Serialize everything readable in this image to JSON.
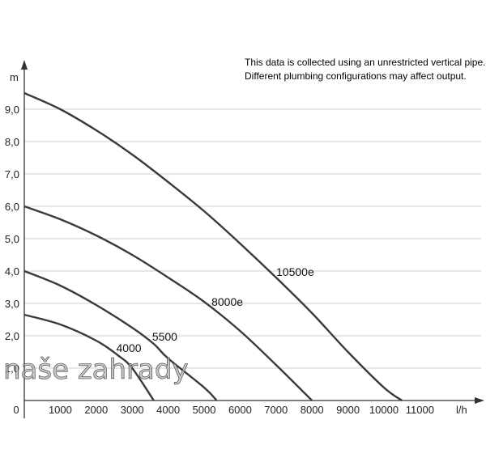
{
  "chart_data": {
    "type": "line",
    "xlabel": "l/h",
    "ylabel": "m",
    "xlim": [
      0,
      12000
    ],
    "ylim": [
      0,
      10
    ],
    "x_ticks": [
      "0",
      "1000",
      "2000",
      "3000",
      "4000",
      "5000",
      "6000",
      "7000",
      "8000",
      "9000",
      "10000",
      "11000"
    ],
    "y_ticks": [
      "1,0",
      "2,0",
      "3,0",
      "4,0",
      "5,0",
      "6,0",
      "7,0",
      "8,0",
      "9,0"
    ],
    "grid": "horizontal",
    "annotations": [
      "This data is collected using an unrestricted vertical pipe.",
      "Different plumbing configurations may affect output."
    ],
    "series": [
      {
        "name": "4000",
        "max_head": 2.65,
        "max_flow": 3600,
        "label_at": 2600,
        "points": [
          [
            0,
            2.65
          ],
          [
            1000,
            2.35
          ],
          [
            2000,
            1.85
          ],
          [
            2600,
            1.4
          ],
          [
            3000,
            1.0
          ],
          [
            3600,
            0
          ]
        ]
      },
      {
        "name": "5500",
        "max_head": 4.0,
        "max_flow": 5350,
        "label_at": 3600,
        "points": [
          [
            0,
            4.0
          ],
          [
            1000,
            3.55
          ],
          [
            2000,
            2.95
          ],
          [
            3000,
            2.25
          ],
          [
            3600,
            1.75
          ],
          [
            4000,
            1.3
          ],
          [
            5000,
            0.4
          ],
          [
            5350,
            0
          ]
        ]
      },
      {
        "name": "8000e",
        "max_head": 6.0,
        "max_flow": 8000,
        "label_at": 5250,
        "points": [
          [
            0,
            6.0
          ],
          [
            1000,
            5.6
          ],
          [
            2000,
            5.1
          ],
          [
            3000,
            4.5
          ],
          [
            4000,
            3.8
          ],
          [
            5000,
            3.05
          ],
          [
            6000,
            2.15
          ],
          [
            7000,
            1.1
          ],
          [
            8000,
            0
          ]
        ]
      },
      {
        "name": "10500e",
        "max_head": 9.5,
        "max_flow": 10500,
        "label_at": 7050,
        "points": [
          [
            0,
            9.5
          ],
          [
            1000,
            9.0
          ],
          [
            2000,
            8.35
          ],
          [
            3000,
            7.6
          ],
          [
            4000,
            6.75
          ],
          [
            5000,
            5.85
          ],
          [
            6000,
            4.85
          ],
          [
            7000,
            3.8
          ],
          [
            8000,
            2.7
          ],
          [
            9000,
            1.5
          ],
          [
            10000,
            0.4
          ],
          [
            10500,
            0
          ]
        ]
      }
    ]
  },
  "watermark": "naše zahrady"
}
